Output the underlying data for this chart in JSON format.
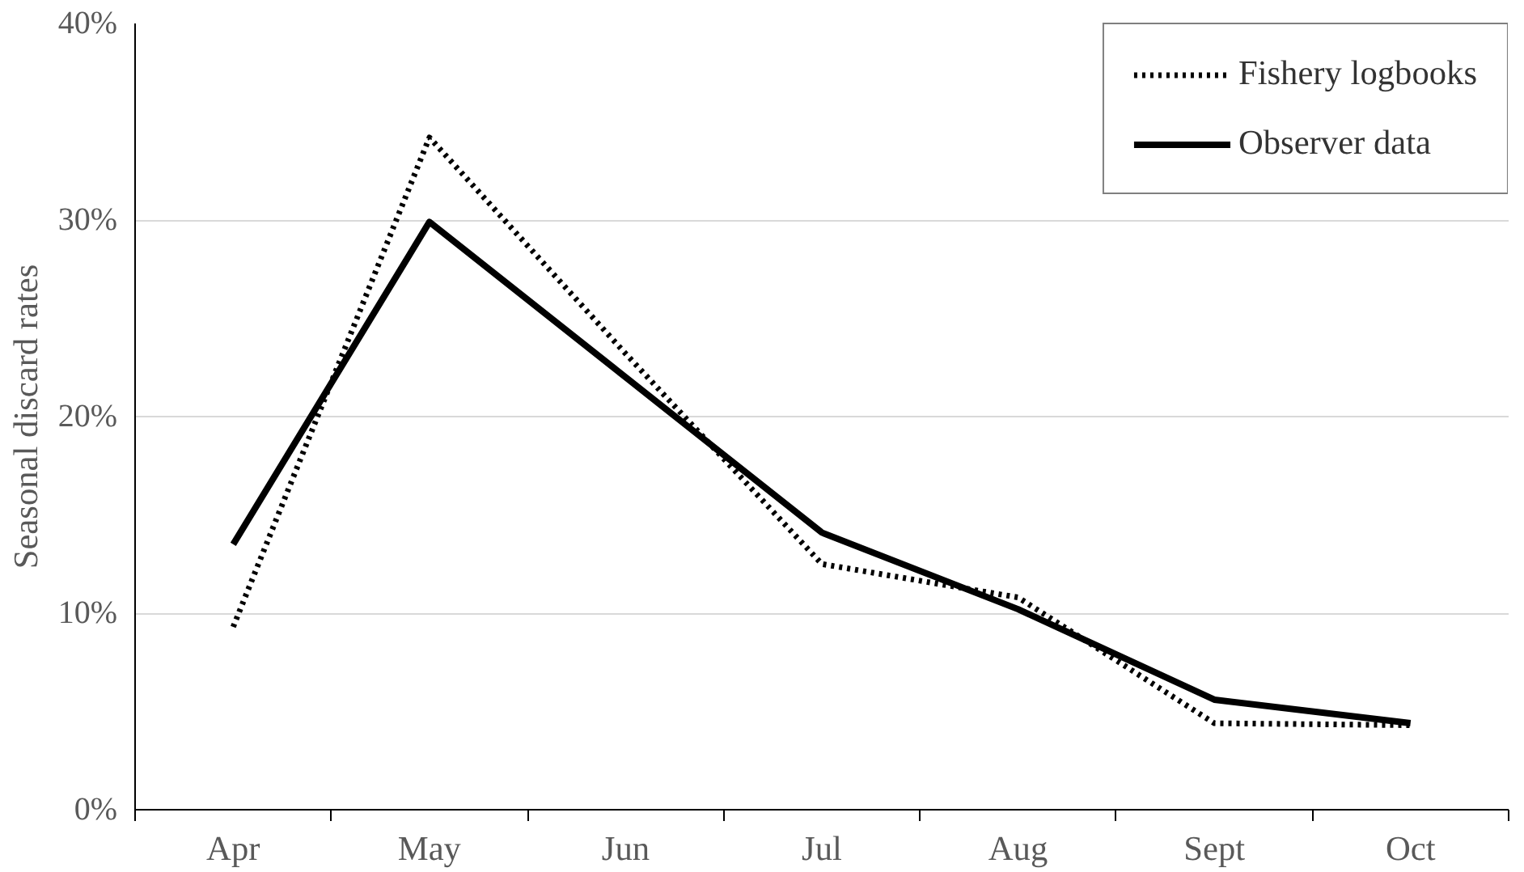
{
  "chart_data": {
    "type": "line",
    "ylabel": "Seasonal discard rates",
    "categories": [
      "Apr",
      "May",
      "Jun",
      "Jul",
      "Aug",
      "Sept",
      "Oct"
    ],
    "series": [
      {
        "name": "Fishery logbooks",
        "color": "#000000",
        "line_style": "dotted",
        "values": [
          9.3,
          34.2,
          23.2,
          12.5,
          10.8,
          4.4,
          4.3
        ]
      },
      {
        "name": "Observer data",
        "color": "#000000",
        "line_style": "solid",
        "values": [
          13.5,
          29.9,
          22.0,
          14.1,
          10.2,
          5.6,
          4.4
        ]
      }
    ],
    "ylim": [
      0,
      40
    ],
    "yticks": [
      {
        "value": 0,
        "label": "0%"
      },
      {
        "value": 10,
        "label": "10%"
      },
      {
        "value": 20,
        "label": "20%"
      },
      {
        "value": 30,
        "label": "30%"
      },
      {
        "value": 40,
        "label": "40%"
      }
    ],
    "grid": "y",
    "legend": "top right",
    "marker": "none"
  }
}
